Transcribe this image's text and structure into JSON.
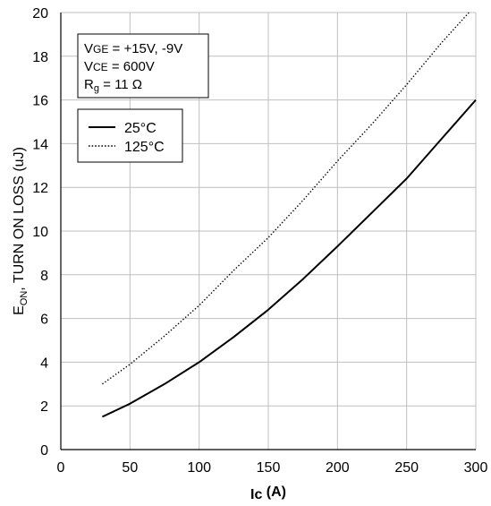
{
  "chart_data": {
    "type": "line",
    "xlabel_main": "Ic",
    "xlabel_sub": "",
    "xlabel_unit": " (A)",
    "ylabel_main": "E",
    "ylabel_sub": "ON",
    "ylabel_rest": ", TURN ON LOSS (uJ)",
    "xlim": [
      0,
      300
    ],
    "ylim": [
      0,
      20
    ],
    "xticks": [
      "0",
      "50",
      "100",
      "150",
      "200",
      "250",
      "300"
    ],
    "yticks": [
      "0",
      "2",
      "4",
      "6",
      "8",
      "10",
      "12",
      "14",
      "16",
      "18",
      "20"
    ],
    "grid": true,
    "legend_position": "top-left",
    "series": [
      {
        "name": "25°C",
        "style": "solid",
        "x": [
          30,
          50,
          75,
          100,
          125,
          150,
          175,
          200,
          225,
          250,
          275,
          300
        ],
        "y": [
          1.5,
          2.1,
          3.0,
          4.0,
          5.15,
          6.4,
          7.8,
          9.3,
          10.85,
          12.4,
          14.2,
          16.0
        ]
      },
      {
        "name": "125°C",
        "style": "dotted",
        "x": [
          30,
          50,
          75,
          100,
          125,
          150,
          175,
          200,
          225,
          250,
          275,
          295
        ],
        "y": [
          3.0,
          3.9,
          5.2,
          6.6,
          8.2,
          9.7,
          11.4,
          13.2,
          14.9,
          16.7,
          18.6,
          20.0
        ]
      }
    ]
  },
  "conditions": {
    "line1_main": "V",
    "line1_sub": "GE",
    "line1_rest": " = +15V, -9V",
    "line2_main": "V",
    "line2_sub": "CE",
    "line2_rest": " = 600V",
    "line3_main": "R",
    "line3_sub": "g",
    "line3_rest": " = 11 Ω"
  },
  "colors": {
    "line": "#000000",
    "grid": "#bfbfbf",
    "axis": "#000000"
  }
}
